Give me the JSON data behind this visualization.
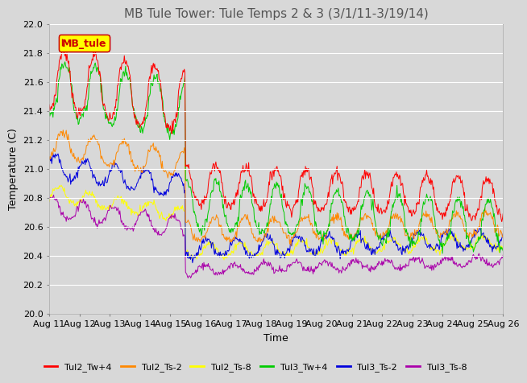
{
  "title": "MB Tule Tower: Tule Temps 2 & 3 (3/1/11-3/19/14)",
  "xlabel": "Time",
  "ylabel": "Temperature (C)",
  "ylim": [
    20.0,
    22.0
  ],
  "yticks": [
    20.0,
    20.2,
    20.4,
    20.6,
    20.8,
    21.0,
    21.2,
    21.4,
    21.6,
    21.8,
    22.0
  ],
  "xtick_labels": [
    "Aug 11",
    "Aug 12",
    "Aug 13",
    "Aug 14",
    "Aug 15",
    "Aug 16",
    "Aug 17",
    "Aug 18",
    "Aug 19",
    "Aug 20",
    "Aug 21",
    "Aug 22",
    "Aug 23",
    "Aug 24",
    "Aug 25",
    "Aug 26"
  ],
  "legend_label": "MB_tule",
  "series_colors": {
    "Tul2_Tw+4": "#ff0000",
    "Tul2_Ts-2": "#ff8800",
    "Tul2_Ts-8": "#ffff00",
    "Tul3_Tw+4": "#00cc00",
    "Tul3_Ts-2": "#0000dd",
    "Tul3_Ts-8": "#aa00aa"
  },
  "background_color": "#d8d8d8",
  "plot_background": "#d8d8d8",
  "grid_color": "#ffffff",
  "title_color": "#555555",
  "title_fontsize": 11,
  "axis_fontsize": 9,
  "tick_fontsize": 8
}
